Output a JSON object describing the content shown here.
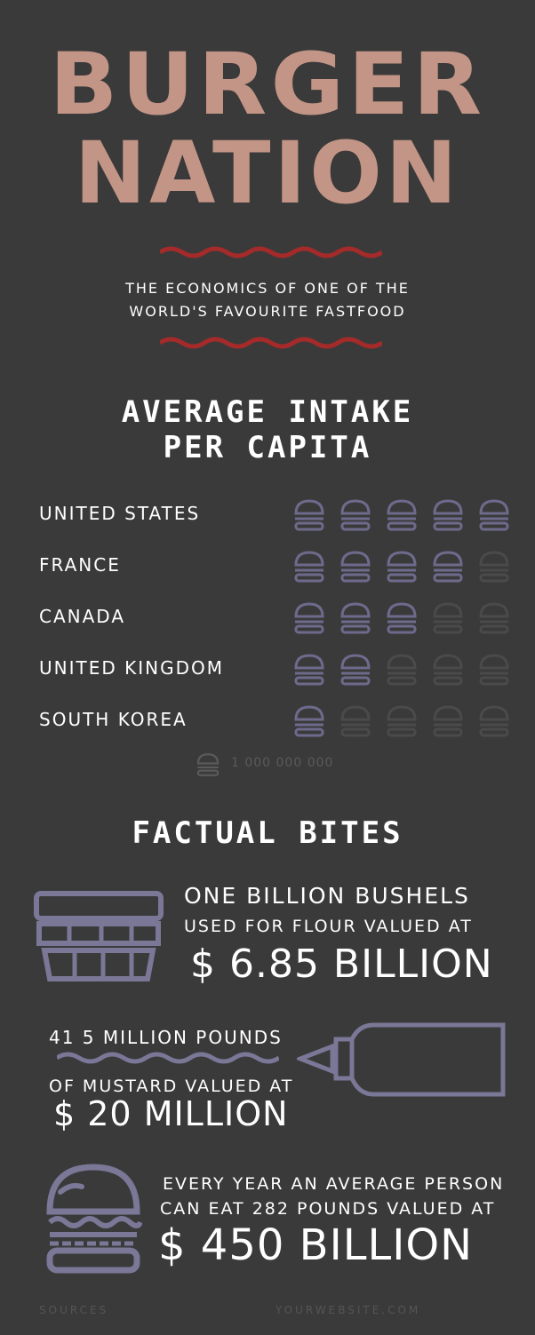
{
  "header": {
    "title_line1": "BURGER",
    "title_line2": "NATION",
    "subtitle_line1": "THE ECONOMICS OF ONE OF THE",
    "subtitle_line2": "WORLD'S FAVOURITE FASTFOOD"
  },
  "intake": {
    "title_line1": "AVERAGE INTAKE",
    "title_line2": "PER CAPITA",
    "rows": [
      {
        "country": "UNITED STATES",
        "filled": 5
      },
      {
        "country": "FRANCE",
        "filled": 4
      },
      {
        "country": "CANADA",
        "filled": 3
      },
      {
        "country": "UNITED KINGDOM",
        "filled": 2
      },
      {
        "country": "SOUTH KOREA",
        "filled": 1
      }
    ],
    "legend_label": "1 000 000 000"
  },
  "facts": {
    "title": "FACTUAL BITES",
    "flour_line1": "ONE BILLION BUSHELS",
    "flour_line2": "USED FOR FLOUR VALUED AT",
    "flour_value": "$ 6.85 BILLION",
    "mustard_line1": "41 5 MILLION POUNDS",
    "mustard_line2": "OF MUSTARD VALUED AT",
    "mustard_value": "$ 20 MILLION",
    "burger_line1": "EVERY YEAR AN AVERAGE PERSON",
    "burger_line2": "CAN EAT 282 POUNDS VALUED AT",
    "burger_value": "$ 450 BILLION"
  },
  "footer": {
    "sources": "SOURCES",
    "website": "YOURWEBSITE.COM"
  },
  "colors": {
    "background": "#3a3a3a",
    "title": "#c39586",
    "accent_red": "#a52a2a",
    "icon_lavender": "#7a7797",
    "icon_dim": "#4a4a4a"
  }
}
